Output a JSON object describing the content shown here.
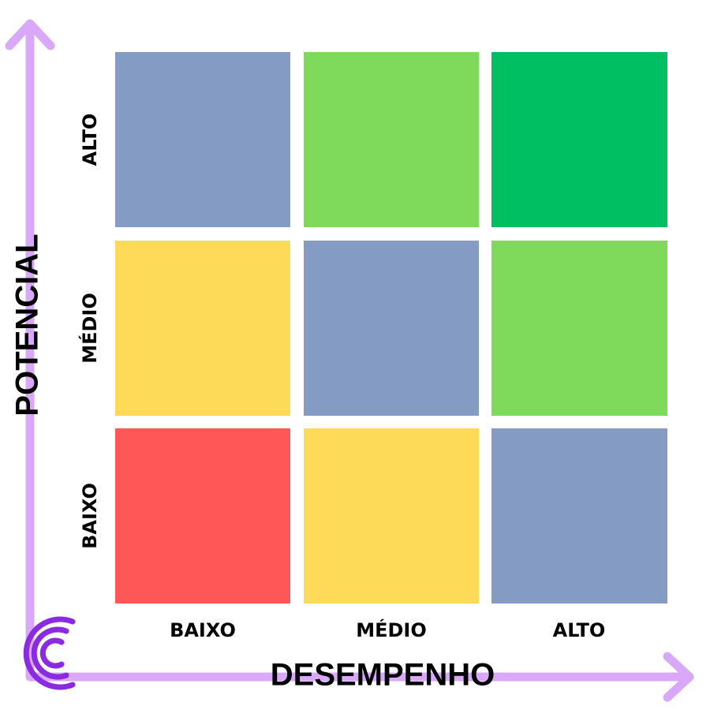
{
  "y_axis": {
    "title": "POTENCIAL",
    "labels": [
      "ALTO",
      "MÉDIO",
      "BAIXO"
    ]
  },
  "x_axis": {
    "title": "DESEMPENHO",
    "labels": [
      "BAIXO",
      "MÉDIO",
      "ALTO"
    ]
  }
}
